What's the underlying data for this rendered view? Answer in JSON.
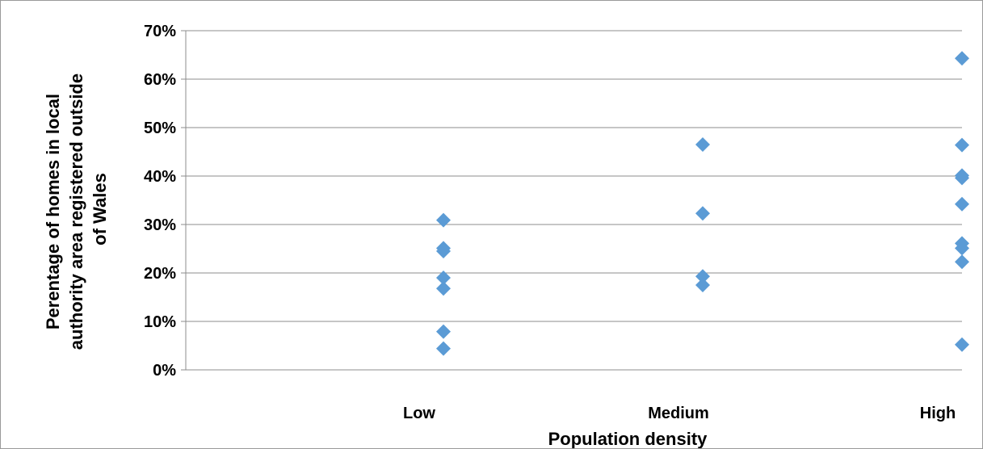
{
  "chart_data": {
    "type": "scatter",
    "categories": [
      "Low",
      "Medium",
      "High"
    ],
    "xlabel": "Population density",
    "ylabel_lines": [
      "Perentage of homes in local",
      "authority area registered outside",
      "of Wales"
    ],
    "ylim": [
      0,
      0.7
    ],
    "y_ticks": [
      {
        "value": 0,
        "label": "0%"
      },
      {
        "value": 0.1,
        "label": "10%"
      },
      {
        "value": 0.2,
        "label": "20%"
      },
      {
        "value": 0.3,
        "label": "30%"
      },
      {
        "value": 0.4,
        "label": "40%"
      },
      {
        "value": 0.5,
        "label": "50%"
      },
      {
        "value": 0.6,
        "label": "60%"
      },
      {
        "value": 0.7,
        "label": "70%"
      }
    ],
    "grid": true,
    "legend": "none",
    "marker_color": "#5b9bd5",
    "points": [
      {
        "x": "Low",
        "y": 0.309
      },
      {
        "x": "Low",
        "y": 0.251
      },
      {
        "x": "Low",
        "y": 0.245
      },
      {
        "x": "Low",
        "y": 0.19
      },
      {
        "x": "Low",
        "y": 0.168
      },
      {
        "x": "Low",
        "y": 0.079
      },
      {
        "x": "Low",
        "y": 0.044
      },
      {
        "x": "Medium",
        "y": 0.465
      },
      {
        "x": "Medium",
        "y": 0.323
      },
      {
        "x": "Medium",
        "y": 0.193
      },
      {
        "x": "Medium",
        "y": 0.175
      },
      {
        "x": "High",
        "y": 0.643
      },
      {
        "x": "High",
        "y": 0.464
      },
      {
        "x": "High",
        "y": 0.401
      },
      {
        "x": "High",
        "y": 0.396
      },
      {
        "x": "High",
        "y": 0.342
      },
      {
        "x": "High",
        "y": 0.261
      },
      {
        "x": "High",
        "y": 0.251
      },
      {
        "x": "High",
        "y": 0.223
      },
      {
        "x": "High",
        "y": 0.052
      }
    ]
  }
}
